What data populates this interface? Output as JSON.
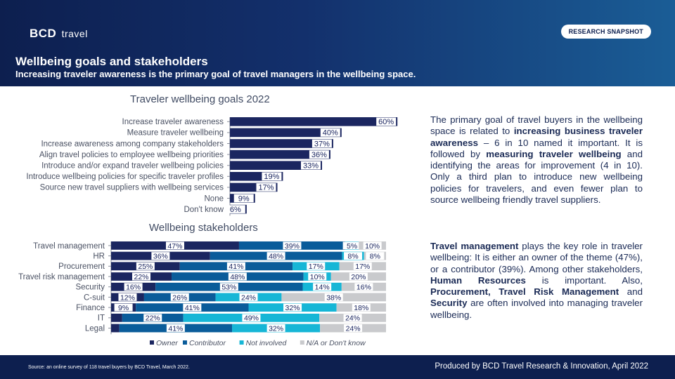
{
  "header": {
    "logo_main": "BCD",
    "logo_sub": "travel",
    "badge": "RESEARCH SNAPSHOT",
    "title": "Wellbeing goals and stakeholders",
    "subtitle": "Increasing traveler awareness is the primary goal of travel managers in the wellbeing space."
  },
  "chart_data": [
    {
      "type": "bar",
      "orientation": "horizontal",
      "title": "Traveler wellbeing goals 2022",
      "categories": [
        "Increase traveler awareness",
        "Measure traveler wellbeing",
        "Increase awareness among company stakeholders",
        "Align travel policies to employee wellbeing priorities",
        "Introduce and/or expand traveler wellbeing policies",
        "Introduce wellbeing policies for specific traveler profiles",
        "Source new travel suppliers with wellbeing services",
        "None",
        "Don't know"
      ],
      "values": [
        60,
        40,
        37,
        36,
        33,
        19,
        17,
        9,
        6
      ],
      "unit": "%",
      "color": "#1b2660"
    },
    {
      "type": "bar",
      "orientation": "horizontal",
      "stacked": true,
      "title": "Wellbeing stakeholders",
      "categories": [
        "Travel management",
        "HR",
        "Procurement",
        "Travel risk management",
        "Security",
        "C-suit",
        "Finance",
        "IT",
        "Legal"
      ],
      "series": [
        {
          "name": "Owner",
          "color": "#1b2660",
          "values": [
            47,
            36,
            25,
            22,
            16,
            12,
            9,
            4,
            3
          ]
        },
        {
          "name": "Contributor",
          "color": "#0a5c9a",
          "values": [
            39,
            48,
            41,
            48,
            53,
            26,
            41,
            22,
            41
          ]
        },
        {
          "name": "Not involved",
          "color": "#16b6d6",
          "values": [
            5,
            8,
            17,
            10,
            14,
            24,
            32,
            49,
            32
          ]
        },
        {
          "name": "N/A or Don't know",
          "color": "#c9cacd",
          "values": [
            10,
            8,
            17,
            20,
            16,
            38,
            18,
            24,
            24
          ]
        }
      ],
      "labels": [
        [
          "47%",
          "39%",
          "5%",
          "10%"
        ],
        [
          "36%",
          "48%",
          "8%",
          "8%"
        ],
        [
          "25%",
          "41%",
          "17%",
          "17%"
        ],
        [
          "22%",
          "48%",
          "10%",
          "20%"
        ],
        [
          "16%",
          "53%",
          "14%",
          "16%"
        ],
        [
          "12%",
          "26%",
          "24%",
          "38%"
        ],
        [
          "9%",
          "41%",
          "32%",
          "18%"
        ],
        [
          "",
          "22%",
          "49%",
          "24%"
        ],
        [
          "",
          "41%",
          "32%",
          "24%"
        ]
      ],
      "unit": "%"
    }
  ],
  "text_blocks": {
    "p1": [
      {
        "t": "The primary goal of travel buyers in the wellbeing space is related to ",
        "b": false
      },
      {
        "t": "increasing business traveler awareness",
        "b": true
      },
      {
        "t": " – 6 in 10 named it important. It is followed by ",
        "b": false
      },
      {
        "t": "measuring traveler wellbeing",
        "b": true
      },
      {
        "t": " and identifying the areas for improvement (4 in 10). Only a third plan to introduce new wellbeing policies for travelers, and even fewer plan to source wellbeing friendly travel suppliers.",
        "b": false
      }
    ],
    "p2": [
      {
        "t": "Travel management",
        "b": true
      },
      {
        "t": " plays the key role in traveler wellbeing: It is either an owner of the theme (47%), or a contributor (39%). Among other stakeholders, ",
        "b": false
      },
      {
        "t": "Human Resources",
        "b": true
      },
      {
        "t": " is important. Also, ",
        "b": false
      },
      {
        "t": "Procurement, Travel Risk Management",
        "b": true
      },
      {
        "t": " and ",
        "b": false
      },
      {
        "t": "Security",
        "b": true
      },
      {
        "t": " are often involved into managing traveler wellbeing.",
        "b": false
      }
    ]
  },
  "footer": {
    "source": "Source: an online survey of 118 travel buyers by BCD Travel, March 2022.",
    "produced": "Produced by BCD Travel Research & Innovation, April 2022"
  }
}
